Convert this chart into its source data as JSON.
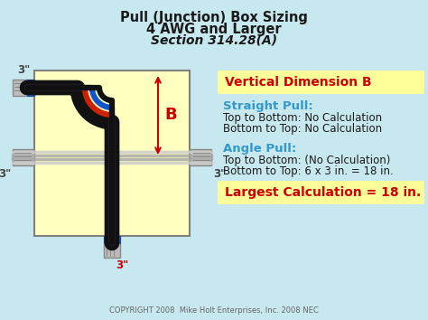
{
  "bg_color": "#c8e8f0",
  "title_line1": "Pull (Junction) Box Sizing",
  "title_line2": "4 AWG and Larger",
  "title_line3": "Section 314.28(A)",
  "title_color": "#1a1a1a",
  "box_color": "#ffffc0",
  "box_edge_color": "#808080",
  "vert_dim_label": "Vertical Dimension B",
  "vert_dim_color": "#cc0000",
  "vert_dim_bg": "#ffff99",
  "straight_pull_label": "Straight Pull:",
  "straight_pull_color": "#3399cc",
  "straight_line1": "Top to Bottom: No Calculation",
  "straight_line2": "Bottom to Top: No Calculation",
  "angle_pull_label": "Angle Pull:",
  "angle_pull_color": "#3399cc",
  "angle_line1": "Top to Bottom: (No Calculation)",
  "angle_line2": "Bottom to Top: 6 x 3 in. = 18 in.",
  "largest_label": "Largest Calculation = 18 in.",
  "largest_color": "#cc0000",
  "largest_bg": "#ffff99",
  "text_color": "#1a1a1a",
  "copyright": "COPYRIGHT 2008  Mike Holt Enterprises, Inc. 2008 NEC",
  "copyright_color": "#666666",
  "dim_3": "3\"",
  "dim_B": "B",
  "wire_colors": [
    "#000000",
    "#cc0000",
    "#1155cc",
    "#000000"
  ],
  "wire_lw": [
    5,
    4,
    4,
    12
  ],
  "connector_color": "#2255aa",
  "connector_face": "#2266cc",
  "conduit_face": "#bbbbbb",
  "conduit_edge": "#888888"
}
